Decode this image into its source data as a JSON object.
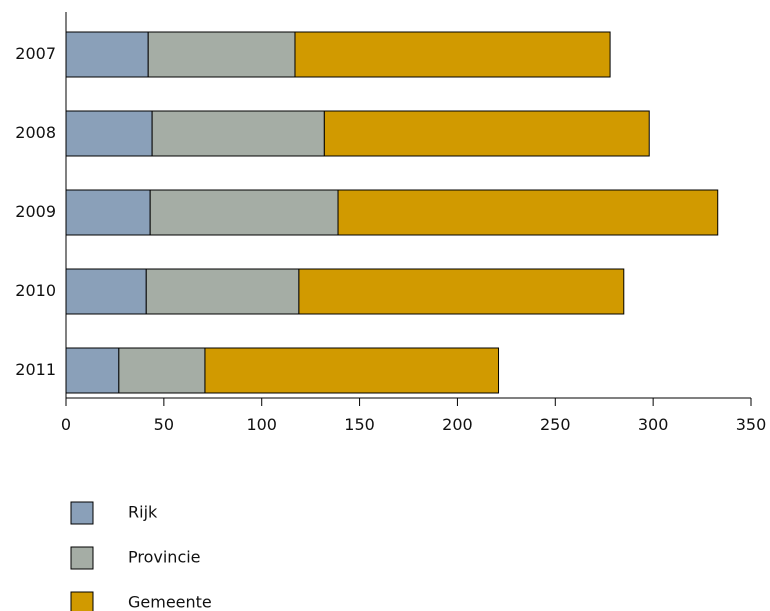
{
  "chart_data": {
    "type": "bar",
    "orientation": "horizontal",
    "stacked": true,
    "title": "",
    "xlabel": "",
    "ylabel": "",
    "categories": [
      "2007",
      "2008",
      "2009",
      "2010",
      "2011"
    ],
    "series": [
      {
        "name": "Rijk",
        "color": "#8aa0b9",
        "values": [
          42,
          44,
          43,
          41,
          27
        ]
      },
      {
        "name": "Provincie",
        "color": "#a5ada5",
        "values": [
          75,
          88,
          96,
          78,
          44
        ]
      },
      {
        "name": "Gemeente",
        "color": "#d19a00",
        "values": [
          161,
          166,
          194,
          166,
          150
        ]
      }
    ],
    "xlim": [
      0,
      350
    ],
    "xticks": [
      0,
      50,
      100,
      150,
      200,
      250,
      300,
      350
    ],
    "grid": false,
    "legend_position": "bottom-left"
  }
}
